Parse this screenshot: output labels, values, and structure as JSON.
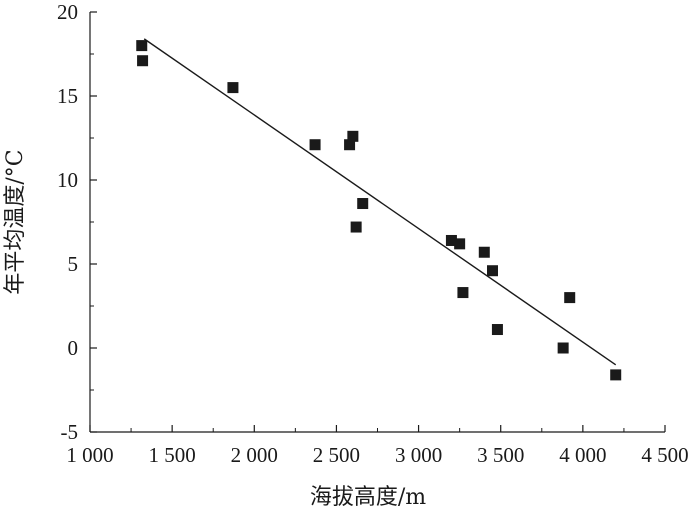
{
  "chart_data": {
    "type": "scatter",
    "title": "",
    "xlabel": "海拔高度/m",
    "ylabel": "年平均温度/°C",
    "xlim": [
      1000,
      4500
    ],
    "ylim": [
      -5,
      20
    ],
    "x_ticks": [
      1000,
      1500,
      2000,
      2500,
      3000,
      3500,
      4000,
      4500
    ],
    "x_tick_labels": [
      "1 000",
      "1 500",
      "2 000",
      "2 500",
      "3 000",
      "3 500",
      "4 000",
      "4 500"
    ],
    "y_ticks": [
      -5,
      0,
      5,
      10,
      15,
      20
    ],
    "y_tick_labels": [
      "-5",
      "0",
      "5",
      "10",
      "15",
      "20"
    ],
    "grid": false,
    "legend": "none",
    "marker": "square",
    "marker_color": "#1a1a1a",
    "series": [
      {
        "points": [
          {
            "x": 1315,
            "y": 18.0
          },
          {
            "x": 1320,
            "y": 17.1
          },
          {
            "x": 1870,
            "y": 15.5
          },
          {
            "x": 2370,
            "y": 12.1
          },
          {
            "x": 2580,
            "y": 12.1
          },
          {
            "x": 2600,
            "y": 12.6
          },
          {
            "x": 2620,
            "y": 7.2
          },
          {
            "x": 2660,
            "y": 8.6
          },
          {
            "x": 3200,
            "y": 6.4
          },
          {
            "x": 3250,
            "y": 6.2
          },
          {
            "x": 3270,
            "y": 3.3
          },
          {
            "x": 3400,
            "y": 5.7
          },
          {
            "x": 3450,
            "y": 4.6
          },
          {
            "x": 3480,
            "y": 1.1
          },
          {
            "x": 3880,
            "y": 0.0
          },
          {
            "x": 3920,
            "y": 3.0
          },
          {
            "x": 4200,
            "y": -1.6
          }
        ]
      }
    ],
    "trendline": {
      "type": "linear",
      "x": [
        1330,
        4200
      ],
      "y": [
        18.4,
        -1.0
      ]
    }
  }
}
